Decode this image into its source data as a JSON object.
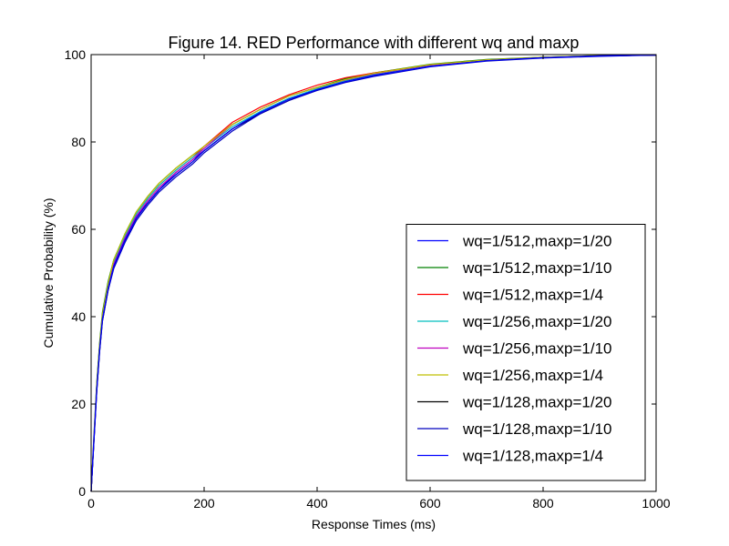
{
  "chart_data": {
    "type": "line",
    "title": "Figure 14. RED Performance with different wq and maxp",
    "xlabel": "Response Times (ms)",
    "ylabel": "Cumulative Probability (%)",
    "xlim": [
      0,
      1000
    ],
    "ylim": [
      0,
      100
    ],
    "x_ticks": [
      "0",
      "200",
      "400",
      "600",
      "800",
      "1000"
    ],
    "y_ticks": [
      "0",
      "20",
      "40",
      "60",
      "80",
      "100"
    ],
    "grid": false,
    "legend_position": "lower-right",
    "series": [
      {
        "name": "wq=1/512,maxp=1/20",
        "color": "#0000ff",
        "x": [
          0,
          5,
          10,
          15,
          20,
          30,
          40,
          60,
          80,
          100,
          120,
          150,
          180,
          200,
          250,
          300,
          350,
          400,
          450,
          500,
          600,
          700,
          800,
          900,
          1000
        ],
        "y": [
          0,
          12,
          24,
          33,
          40,
          47,
          52,
          58,
          63,
          66,
          69,
          73,
          76,
          78,
          83,
          87,
          90,
          92,
          94,
          95.5,
          97.5,
          98.7,
          99.3,
          99.7,
          99.9
        ]
      },
      {
        "name": "wq=1/512,maxp=1/10",
        "color": "#008000",
        "x": [
          0,
          5,
          10,
          15,
          20,
          30,
          40,
          60,
          80,
          100,
          120,
          150,
          180,
          200,
          250,
          300,
          350,
          400,
          450,
          500,
          600,
          700,
          800,
          900,
          1000
        ],
        "y": [
          0,
          13,
          25,
          34,
          41,
          48,
          53,
          59,
          64,
          67.5,
          70.5,
          74,
          77,
          79,
          84,
          87.5,
          90.5,
          92.5,
          94.5,
          95.8,
          97.8,
          98.9,
          99.4,
          99.8,
          99.9
        ]
      },
      {
        "name": "wq=1/512,maxp=1/4",
        "color": "#ff0000",
        "x": [
          0,
          5,
          10,
          15,
          20,
          30,
          40,
          60,
          80,
          100,
          120,
          150,
          180,
          200,
          250,
          300,
          350,
          400,
          450,
          500,
          600,
          700,
          800,
          900,
          1000
        ],
        "y": [
          0,
          12,
          24,
          33,
          40,
          47,
          52.5,
          58.5,
          63.5,
          67,
          70,
          73.5,
          76.5,
          79,
          84.5,
          88,
          90.8,
          93,
          94.7,
          95.8,
          97.6,
          98.7,
          99.3,
          99.7,
          99.9
        ]
      },
      {
        "name": "wq=1/256,maxp=1/20",
        "color": "#00bfbf",
        "x": [
          0,
          5,
          10,
          15,
          20,
          30,
          40,
          60,
          80,
          100,
          120,
          150,
          180,
          200,
          250,
          300,
          350,
          400,
          450,
          500,
          600,
          700,
          800,
          900,
          1000
        ],
        "y": [
          0,
          12,
          24,
          33,
          40,
          47.5,
          52.5,
          58.5,
          63.5,
          67,
          70,
          73.5,
          76.5,
          78.5,
          83.5,
          87,
          90,
          92.2,
          94,
          95.5,
          97.5,
          98.7,
          99.3,
          99.7,
          99.9
        ]
      },
      {
        "name": "wq=1/256,maxp=1/10",
        "color": "#bf00bf",
        "x": [
          0,
          5,
          10,
          15,
          20,
          30,
          40,
          60,
          80,
          100,
          120,
          150,
          180,
          200,
          250,
          300,
          350,
          400,
          450,
          500,
          600,
          700,
          800,
          900,
          1000
        ],
        "y": [
          0,
          12,
          23.5,
          32.5,
          39.5,
          46.5,
          52,
          58,
          63,
          66.5,
          69.5,
          73,
          76,
          78.5,
          84,
          87.5,
          90.5,
          92.5,
          94.2,
          95.6,
          97.6,
          98.8,
          99.3,
          99.7,
          99.9
        ]
      },
      {
        "name": "wq=1/256,maxp=1/4",
        "color": "#bfbf00",
        "x": [
          0,
          5,
          10,
          15,
          20,
          30,
          40,
          60,
          80,
          100,
          120,
          150,
          180,
          200,
          250,
          300,
          350,
          400,
          450,
          500,
          600,
          700,
          800,
          900,
          1000
        ],
        "y": [
          0,
          12.5,
          24.5,
          33.5,
          40.5,
          47.5,
          53,
          59,
          64,
          67.5,
          70.5,
          74,
          77,
          79,
          84,
          87.5,
          90.5,
          92.5,
          94.3,
          95.7,
          97.7,
          98.8,
          99.4,
          99.8,
          99.9
        ]
      },
      {
        "name": "wq=1/128,maxp=1/20",
        "color": "#000000",
        "x": [
          0,
          5,
          10,
          15,
          20,
          30,
          40,
          60,
          80,
          100,
          120,
          150,
          180,
          200,
          250,
          300,
          350,
          400,
          450,
          500,
          600,
          700,
          800,
          900,
          1000
        ],
        "y": [
          0,
          11.5,
          23,
          32,
          39,
          46,
          51.5,
          57.5,
          62.5,
          66,
          69,
          72.5,
          75.5,
          78,
          83,
          86.5,
          89.5,
          92,
          93.8,
          95.2,
          97.3,
          98.6,
          99.3,
          99.7,
          99.9
        ]
      },
      {
        "name": "wq=1/128,maxp=1/10",
        "color": "#0000bf",
        "x": [
          0,
          5,
          10,
          15,
          20,
          30,
          40,
          60,
          80,
          100,
          120,
          150,
          180,
          200,
          250,
          300,
          350,
          400,
          450,
          500,
          600,
          700,
          800,
          900,
          1000
        ],
        "y": [
          0,
          11.5,
          23,
          32,
          39,
          46,
          51,
          57,
          62,
          65.5,
          68.5,
          72,
          75,
          77.5,
          82.5,
          86.5,
          89.5,
          91.8,
          93.6,
          95,
          97.2,
          98.5,
          99.2,
          99.6,
          99.9
        ]
      },
      {
        "name": "wq=1/128,maxp=1/4",
        "color": "#0000ff",
        "x": [
          0,
          5,
          10,
          15,
          20,
          30,
          40,
          60,
          80,
          100,
          120,
          150,
          180,
          200,
          250,
          300,
          350,
          400,
          450,
          500,
          600,
          700,
          800,
          900,
          1000
        ],
        "y": [
          0,
          12,
          23.5,
          32.5,
          39.5,
          46.5,
          51.5,
          57.5,
          62.5,
          66,
          69,
          72.5,
          75.5,
          78,
          83,
          86.8,
          89.8,
          92,
          93.8,
          95.2,
          97.3,
          98.6,
          99.3,
          99.7,
          99.9
        ]
      }
    ]
  }
}
